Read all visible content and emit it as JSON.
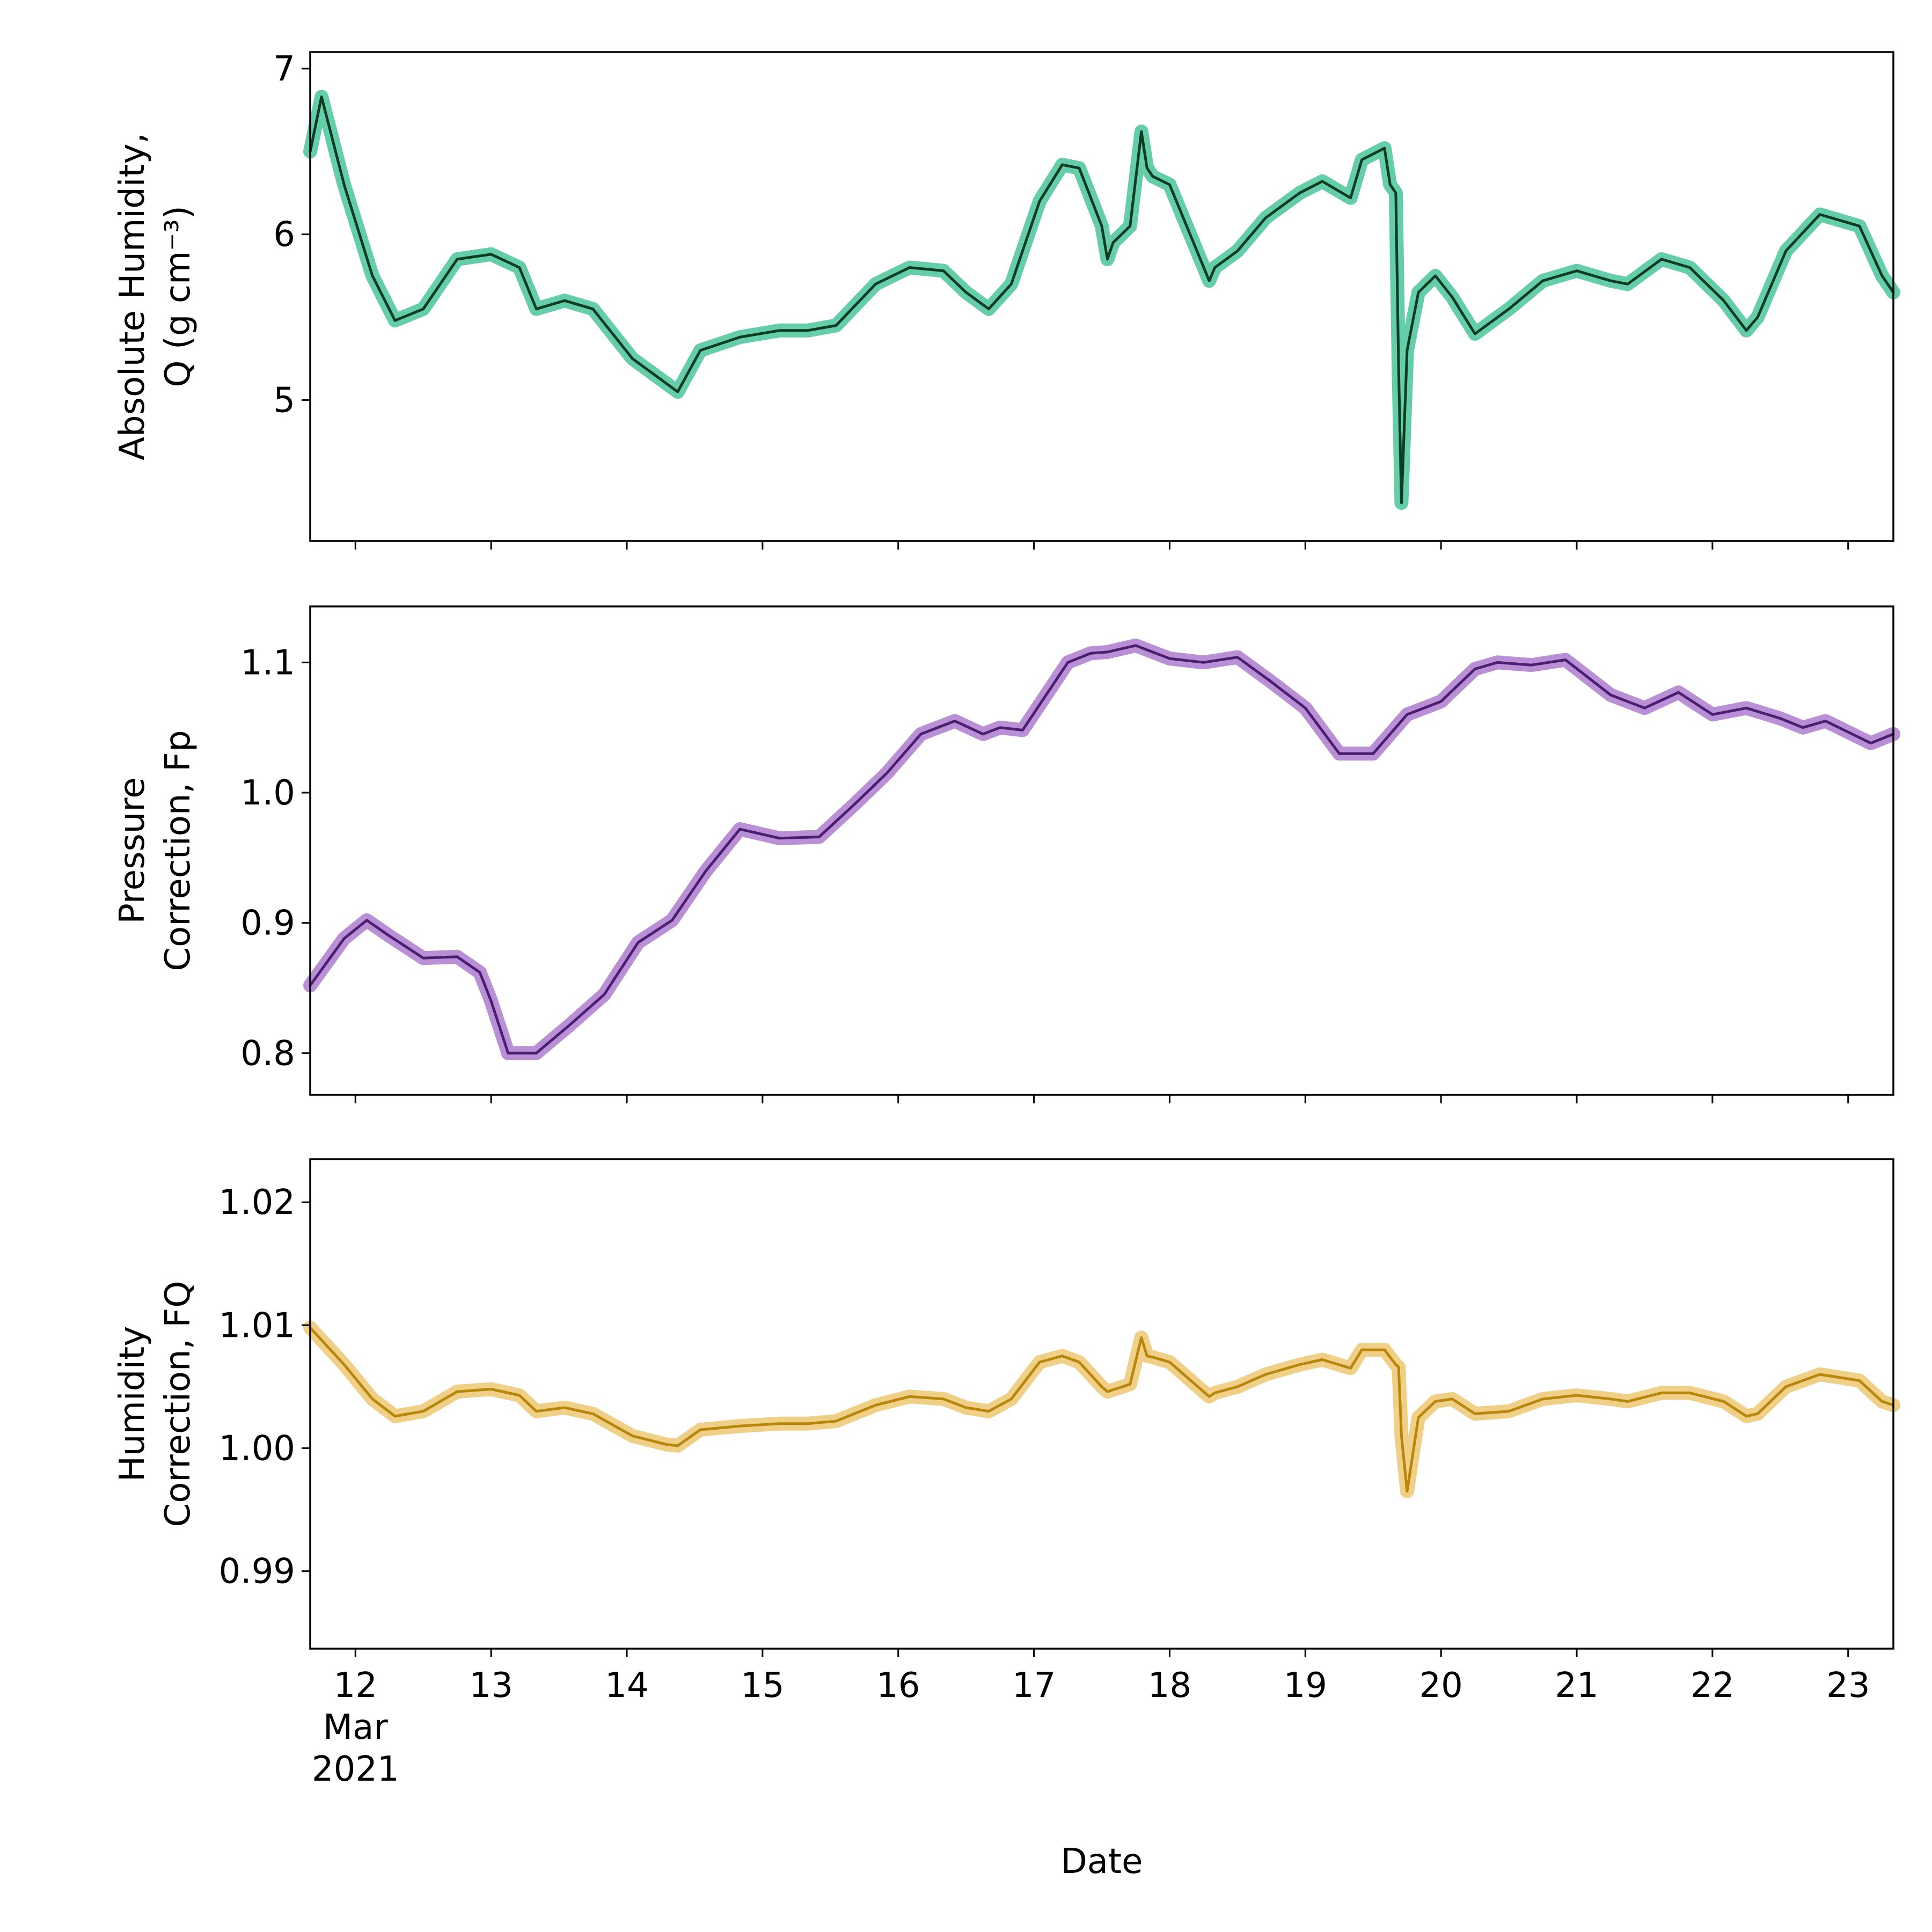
{
  "chart_data": [
    {
      "type": "line",
      "ylabel_lines": [
        "Absolute Humidity,",
        "Q (g cm⁻³)"
      ],
      "ylim": [
        4.15,
        7.1
      ],
      "yticks": [
        5,
        6,
        7
      ],
      "ytick_labels": [
        "5",
        "6",
        "7"
      ],
      "x_range": [
        "2021-03-11 16:00",
        "2021-03-23 08:00"
      ],
      "grid": false,
      "series": [
        {
          "color_halo": "#66cdaa",
          "color_line": "#0b3d23",
          "x": [
            "2021-03-11 16:00",
            "2021-03-11 18:00",
            "2021-03-11 22:00",
            "2021-03-12 03:00",
            "2021-03-12 07:00",
            "2021-03-12 12:00",
            "2021-03-12 18:00",
            "2021-03-13 00:00",
            "2021-03-13 05:00",
            "2021-03-13 08:00",
            "2021-03-13 13:00",
            "2021-03-13 18:00",
            "2021-03-14 01:00",
            "2021-03-14 07:00",
            "2021-03-14 09:00",
            "2021-03-14 13:00",
            "2021-03-14 20:00",
            "2021-03-15 03:00",
            "2021-03-15 08:00",
            "2021-03-15 13:00",
            "2021-03-15 20:00",
            "2021-03-16 02:00",
            "2021-03-16 08:00",
            "2021-03-16 12:00",
            "2021-03-16 16:00",
            "2021-03-16 20:00",
            "2021-03-17 01:00",
            "2021-03-17 05:00",
            "2021-03-17 08:00",
            "2021-03-17 12:00",
            "2021-03-17 13:00",
            "2021-03-17 14:00",
            "2021-03-17 17:00",
            "2021-03-17 19:00",
            "2021-03-17 20:00",
            "2021-03-17 21:00",
            "2021-03-18 00:00",
            "2021-03-18 07:00",
            "2021-03-18 08:00",
            "2021-03-18 12:00",
            "2021-03-18 17:00",
            "2021-03-18 23:00",
            "2021-03-19 03:00",
            "2021-03-19 08:00",
            "2021-03-19 10:00",
            "2021-03-19 14:00",
            "2021-03-19 15:00",
            "2021-03-19 16:00",
            "2021-03-19 16:30",
            "2021-03-19 17:00",
            "2021-03-19 18:00",
            "2021-03-19 20:00",
            "2021-03-19 23:00",
            "2021-03-20 02:00",
            "2021-03-20 06:00",
            "2021-03-20 12:00",
            "2021-03-20 18:00",
            "2021-03-21 00:00",
            "2021-03-21 06:00",
            "2021-03-21 09:00",
            "2021-03-21 15:00",
            "2021-03-21 20:00",
            "2021-03-22 02:00",
            "2021-03-22 06:00",
            "2021-03-22 08:00",
            "2021-03-22 13:00",
            "2021-03-22 19:00",
            "2021-03-23 02:00",
            "2021-03-23 06:00",
            "2021-03-23 08:00"
          ],
          "y": [
            6.5,
            6.83,
            6.3,
            5.75,
            5.48,
            5.55,
            5.85,
            5.88,
            5.8,
            5.55,
            5.6,
            5.55,
            5.25,
            5.1,
            5.05,
            5.3,
            5.38,
            5.42,
            5.42,
            5.45,
            5.7,
            5.8,
            5.78,
            5.65,
            5.55,
            5.7,
            6.2,
            6.42,
            6.4,
            6.05,
            5.85,
            5.95,
            6.05,
            6.62,
            6.4,
            6.35,
            6.3,
            5.72,
            5.8,
            5.9,
            6.1,
            6.25,
            6.32,
            6.22,
            6.45,
            6.52,
            6.3,
            6.25,
            5.2,
            4.38,
            5.3,
            5.65,
            5.75,
            5.62,
            5.4,
            5.55,
            5.72,
            5.78,
            5.72,
            5.7,
            5.85,
            5.8,
            5.6,
            5.42,
            5.5,
            5.9,
            6.12,
            6.05,
            5.75,
            5.65
          ]
        }
      ]
    },
    {
      "type": "line",
      "ylabel_lines": [
        "Pressure",
        "Correction, Fp"
      ],
      "ylim": [
        0.768,
        1.143
      ],
      "yticks": [
        0.8,
        0.9,
        1.0,
        1.1
      ],
      "ytick_labels": [
        "0.8",
        "0.9",
        "1.0",
        "1.1"
      ],
      "x_range": [
        "2021-03-11 16:00",
        "2021-03-23 08:00"
      ],
      "grid": false,
      "series": [
        {
          "color_halo": "#b98fd6",
          "color_line": "#4b1e72",
          "x": [
            "2021-03-11 16:00",
            "2021-03-11 22:00",
            "2021-03-12 02:00",
            "2021-03-12 06:00",
            "2021-03-12 12:00",
            "2021-03-12 18:00",
            "2021-03-12 22:00",
            "2021-03-13 00:00",
            "2021-03-13 03:00",
            "2021-03-13 08:00",
            "2021-03-13 14:00",
            "2021-03-13 20:00",
            "2021-03-14 02:00",
            "2021-03-14 08:00",
            "2021-03-14 14:00",
            "2021-03-14 20:00",
            "2021-03-15 03:00",
            "2021-03-15 10:00",
            "2021-03-15 16:00",
            "2021-03-15 22:00",
            "2021-03-16 04:00",
            "2021-03-16 10:00",
            "2021-03-16 15:00",
            "2021-03-16 18:00",
            "2021-03-16 22:00",
            "2021-03-17 06:00",
            "2021-03-17 10:00",
            "2021-03-17 13:00",
            "2021-03-17 18:00",
            "2021-03-18 00:00",
            "2021-03-18 06:00",
            "2021-03-18 12:00",
            "2021-03-18 18:00",
            "2021-03-19 00:00",
            "2021-03-19 06:00",
            "2021-03-19 12:00",
            "2021-03-19 18:00",
            "2021-03-20 00:00",
            "2021-03-20 06:00",
            "2021-03-20 10:00",
            "2021-03-20 16:00",
            "2021-03-20 22:00",
            "2021-03-21 06:00",
            "2021-03-21 12:00",
            "2021-03-21 18:00",
            "2021-03-22 00:00",
            "2021-03-22 06:00",
            "2021-03-22 12:00",
            "2021-03-22 16:00",
            "2021-03-22 20:00",
            "2021-03-23 04:00",
            "2021-03-23 08:00"
          ],
          "y": [
            0.852,
            0.888,
            0.902,
            0.89,
            0.873,
            0.874,
            0.862,
            0.84,
            0.8,
            0.8,
            0.822,
            0.845,
            0.885,
            0.902,
            0.94,
            0.972,
            0.965,
            0.966,
            0.99,
            1.015,
            1.045,
            1.055,
            1.045,
            1.05,
            1.048,
            1.1,
            1.107,
            1.108,
            1.113,
            1.103,
            1.1,
            1.104,
            1.085,
            1.065,
            1.03,
            1.03,
            1.06,
            1.07,
            1.095,
            1.1,
            1.098,
            1.102,
            1.075,
            1.065,
            1.077,
            1.06,
            1.065,
            1.057,
            1.05,
            1.055,
            1.038,
            1.045
          ]
        }
      ]
    },
    {
      "type": "line",
      "xlabel": "Date",
      "ylabel_lines": [
        "Humidity",
        "Correction, FQ"
      ],
      "ylim": [
        0.9837,
        1.0235
      ],
      "yticks": [
        0.99,
        1.0,
        1.01,
        1.02
      ],
      "ytick_labels": [
        "0.99",
        "1.00",
        "1.01",
        "1.02"
      ],
      "x_range": [
        "2021-03-11 16:00",
        "2021-03-23 08:00"
      ],
      "xticks": [
        "2021-03-12",
        "2021-03-13",
        "2021-03-14",
        "2021-03-15",
        "2021-03-16",
        "2021-03-17",
        "2021-03-18",
        "2021-03-19",
        "2021-03-20",
        "2021-03-21",
        "2021-03-22",
        "2021-03-23"
      ],
      "xtick_labels": [
        [
          "12",
          "Mar",
          "2021"
        ],
        [
          "13"
        ],
        [
          "14"
        ],
        [
          "15"
        ],
        [
          "16"
        ],
        [
          "17"
        ],
        [
          "18"
        ],
        [
          "19"
        ],
        [
          "20"
        ],
        [
          "21"
        ],
        [
          "22"
        ],
        [
          "23"
        ]
      ],
      "grid": false,
      "series": [
        {
          "color_halo": "#f0cf86",
          "color_line": "#b8860b",
          "x": [
            "2021-03-11 16:00",
            "2021-03-11 22:00",
            "2021-03-12 03:00",
            "2021-03-12 07:00",
            "2021-03-12 12:00",
            "2021-03-12 18:00",
            "2021-03-13 00:00",
            "2021-03-13 05:00",
            "2021-03-13 08:00",
            "2021-03-13 13:00",
            "2021-03-13 18:00",
            "2021-03-14 01:00",
            "2021-03-14 07:00",
            "2021-03-14 09:00",
            "2021-03-14 13:00",
            "2021-03-14 20:00",
            "2021-03-15 03:00",
            "2021-03-15 08:00",
            "2021-03-15 13:00",
            "2021-03-15 20:00",
            "2021-03-16 02:00",
            "2021-03-16 08:00",
            "2021-03-16 12:00",
            "2021-03-16 16:00",
            "2021-03-16 20:00",
            "2021-03-17 01:00",
            "2021-03-17 05:00",
            "2021-03-17 08:00",
            "2021-03-17 12:00",
            "2021-03-17 13:00",
            "2021-03-17 17:00",
            "2021-03-17 19:00",
            "2021-03-17 20:00",
            "2021-03-17 21:00",
            "2021-03-18 00:00",
            "2021-03-18 07:00",
            "2021-03-18 08:00",
            "2021-03-18 12:00",
            "2021-03-18 17:00",
            "2021-03-18 23:00",
            "2021-03-19 03:00",
            "2021-03-19 08:00",
            "2021-03-19 10:00",
            "2021-03-19 14:00",
            "2021-03-19 16:00",
            "2021-03-19 16:30",
            "2021-03-19 17:00",
            "2021-03-19 18:00",
            "2021-03-19 20:00",
            "2021-03-19 23:00",
            "2021-03-20 02:00",
            "2021-03-20 06:00",
            "2021-03-20 12:00",
            "2021-03-20 18:00",
            "2021-03-21 00:00",
            "2021-03-21 06:00",
            "2021-03-21 09:00",
            "2021-03-21 15:00",
            "2021-03-21 20:00",
            "2021-03-22 02:00",
            "2021-03-22 06:00",
            "2021-03-22 08:00",
            "2021-03-22 13:00",
            "2021-03-22 19:00",
            "2021-03-23 02:00",
            "2021-03-23 06:00",
            "2021-03-23 08:00"
          ],
          "y": [
            1.0098,
            1.0068,
            1.004,
            1.0026,
            1.003,
            1.0046,
            1.0048,
            1.0043,
            1.003,
            1.0033,
            1.0028,
            1.001,
            1.0003,
            1.0002,
            1.0015,
            1.0018,
            1.002,
            1.002,
            1.0022,
            1.0035,
            1.0042,
            1.004,
            1.0033,
            1.003,
            1.004,
            1.007,
            1.0075,
            1.007,
            1.005,
            1.0046,
            1.0052,
            1.009,
            1.0075,
            1.0074,
            1.007,
            1.0042,
            1.0045,
            1.005,
            1.006,
            1.0068,
            1.0072,
            1.0065,
            1.008,
            1.008,
            1.0068,
            1.0066,
            1.001,
            0.9965,
            1.0025,
            1.0038,
            1.004,
            1.0028,
            1.003,
            1.004,
            1.0043,
            1.004,
            1.0038,
            1.0045,
            1.0045,
            1.0038,
            1.0026,
            1.0028,
            1.005,
            1.006,
            1.0055,
            1.0038,
            1.0035
          ]
        }
      ]
    }
  ]
}
